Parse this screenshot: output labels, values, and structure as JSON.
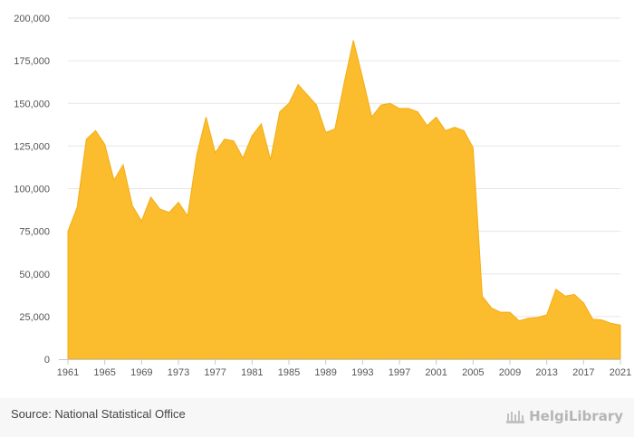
{
  "chart_data": {
    "type": "area",
    "title": "",
    "xlabel": "",
    "ylabel": "",
    "x": [
      1961,
      1962,
      1963,
      1964,
      1965,
      1966,
      1967,
      1968,
      1969,
      1970,
      1971,
      1972,
      1973,
      1974,
      1975,
      1976,
      1977,
      1978,
      1979,
      1980,
      1981,
      1982,
      1983,
      1984,
      1985,
      1986,
      1987,
      1988,
      1989,
      1990,
      1991,
      1992,
      1993,
      1994,
      1995,
      1996,
      1997,
      1998,
      1999,
      2000,
      2001,
      2002,
      2003,
      2004,
      2005,
      2006,
      2007,
      2008,
      2009,
      2010,
      2011,
      2012,
      2013,
      2014,
      2015,
      2016,
      2017,
      2018,
      2019,
      2020,
      2021
    ],
    "values": [
      75000,
      89000,
      129000,
      134000,
      126000,
      105000,
      114000,
      90000,
      81000,
      95000,
      88000,
      86000,
      92000,
      84000,
      120000,
      142000,
      121000,
      129000,
      128000,
      118000,
      131000,
      138000,
      117000,
      145000,
      150000,
      161000,
      155000,
      149000,
      133000,
      135000,
      162000,
      187000,
      165000,
      142000,
      149000,
      150000,
      147000,
      147000,
      145000,
      137000,
      142000,
      134000,
      136000,
      134000,
      124000,
      37000,
      30000,
      27500,
      27500,
      22500,
      24000,
      24500,
      26000,
      41000,
      37000,
      38000,
      33000,
      23500,
      23000,
      21000,
      20000
    ],
    "ylim": [
      0,
      200000
    ],
    "yticks": [
      "0",
      "25,000",
      "50,000",
      "75,000",
      "100,000",
      "125,000",
      "150,000",
      "175,000",
      "200,000"
    ],
    "xticks": [
      "1961",
      "1965",
      "1969",
      "1973",
      "1977",
      "1981",
      "1985",
      "1989",
      "1993",
      "1997",
      "2001",
      "2005",
      "2009",
      "2013",
      "2017",
      "2021"
    ],
    "grid": true,
    "legend": "none"
  },
  "colors": {
    "area_fill": "#fbbc2d",
    "area_stroke": "#f5ad13",
    "grid": "#e6e6e6",
    "axis": "#c0cadb"
  },
  "footer": {
    "source": "Source: National Statistical Office",
    "logo_text": "HelgiLibrary"
  }
}
